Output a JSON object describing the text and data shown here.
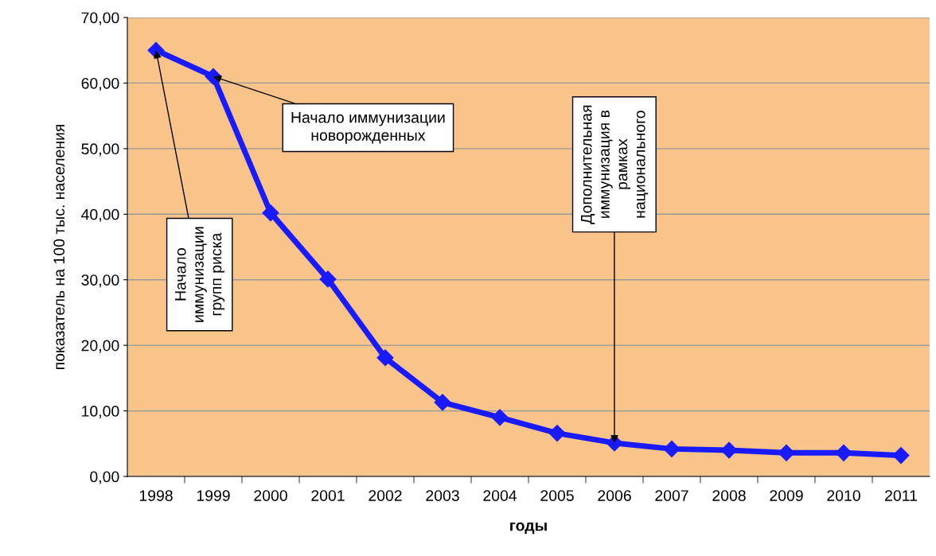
{
  "chart_data": {
    "type": "line",
    "xlabel": "годы",
    "ylabel": "показатель на 100 тыс. населения",
    "categories": [
      "1998",
      "1999",
      "2000",
      "2001",
      "2002",
      "2003",
      "2004",
      "2005",
      "2006",
      "2007",
      "2008",
      "2009",
      "2010",
      "2011"
    ],
    "series": [
      {
        "color": "#1a1aff",
        "values": [
          65.0,
          61.0,
          40.2,
          30.1,
          18.1,
          11.3,
          9.0,
          6.6,
          5.1,
          4.2,
          4.0,
          3.6,
          3.6,
          3.2
        ]
      }
    ],
    "ylim": [
      0,
      70
    ],
    "yticks": [
      {
        "value": 0,
        "label": "0,00"
      },
      {
        "value": 10,
        "label": "10,00"
      },
      {
        "value": 20,
        "label": "20,00"
      },
      {
        "value": 30,
        "label": "30,00"
      },
      {
        "value": 40,
        "label": "40,00"
      },
      {
        "value": 50,
        "label": "50,00"
      },
      {
        "value": 60,
        "label": "60,00"
      },
      {
        "value": 70,
        "label": "70,00"
      }
    ],
    "grid": "y",
    "marker": "diamond",
    "line_style": "solid",
    "legend": false,
    "annotations": [
      {
        "text": "Начало\nиммунизации\nгрупп риска",
        "x": "1998",
        "y": 65.0
      },
      {
        "text": "Начало иммунизации\nноворожденных",
        "x": "1999",
        "y": 61.0
      },
      {
        "text": "Дополнительная\nиммунизация в\nрамках\nнационального",
        "x": "2006",
        "y": 5.1
      }
    ]
  }
}
